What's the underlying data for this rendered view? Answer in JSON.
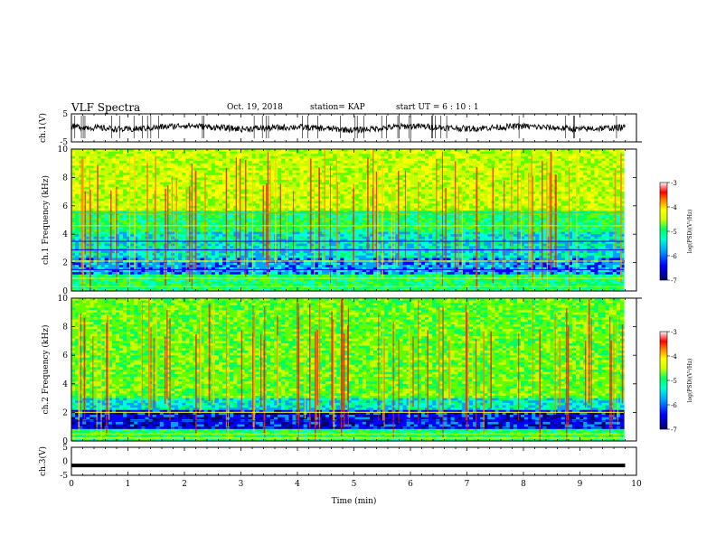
{
  "header": {
    "title": "VLF Spectra",
    "date": "Oct. 19, 2018",
    "station": "station= KAP",
    "start_ut": "start UT = 6 : 10 : 1"
  },
  "colors": {
    "axis": "#000000",
    "colormap": [
      "#000066",
      "#0000ff",
      "#00a0ff",
      "#00ffd0",
      "#00ff60",
      "#60ff00",
      "#c8ff00",
      "#ffff00",
      "#ff8000",
      "#ff0000",
      "#c80000",
      "#ffffff"
    ]
  },
  "chart_data": [
    {
      "type": "line",
      "panel": "ch1-waveform",
      "ylabel": "ch.1(V)",
      "ylim": [
        -5,
        5
      ],
      "yticks": [
        "5",
        "-5"
      ],
      "xlim": [
        0,
        10
      ],
      "description_values": {
        "x_min": [
          0,
          1,
          2,
          3,
          4,
          5,
          6,
          7,
          8,
          9,
          9.8
        ],
        "y_volts": [
          0.5,
          -0.6,
          0.9,
          -0.4,
          0.3,
          -0.8,
          0.7,
          -0.3,
          0.6,
          -0.5,
          0.2
        ]
      }
    },
    {
      "type": "heatmap",
      "panel": "ch1-spectrogram",
      "ylabel": "ch.1 Frequency (kHz)",
      "ylim": [
        0,
        10
      ],
      "yticks": [
        "0",
        "2",
        "4",
        "6",
        "8",
        "10"
      ],
      "xlim": [
        0,
        10
      ],
      "colorbar_label": "log(PSD)(V²/Hz)",
      "colorbar_range": [
        -7,
        -3
      ],
      "colorbar_ticks": [
        "-3",
        "-4",
        "-5",
        "-6",
        "-7"
      ]
    },
    {
      "type": "heatmap",
      "panel": "ch2-spectrogram",
      "ylabel": "ch.2 Frequency (kHz)",
      "ylim": [
        0,
        10
      ],
      "yticks": [
        "0",
        "2",
        "4",
        "6",
        "8",
        "10"
      ],
      "xlim": [
        0,
        10
      ],
      "colorbar_label": "log(PSD)(V²/Hz)",
      "colorbar_range": [
        -7,
        -3
      ],
      "colorbar_ticks": [
        "-3",
        "-4",
        "-5",
        "-6",
        "-7"
      ]
    },
    {
      "type": "line",
      "panel": "ch3-waveform",
      "ylabel": "ch.3(V)",
      "ylim": [
        -5,
        5
      ],
      "yticks": [
        "5",
        "0",
        "-5"
      ],
      "xlim": [
        0,
        10
      ],
      "description_values": {
        "x_min": [
          0,
          9.8
        ],
        "y_volts": [
          -1.5,
          -1.5
        ]
      }
    }
  ],
  "xaxis": {
    "label": "Time (min)",
    "ticks": [
      "0",
      "1",
      "2",
      "3",
      "4",
      "5",
      "6",
      "7",
      "8",
      "9",
      "10"
    ]
  }
}
